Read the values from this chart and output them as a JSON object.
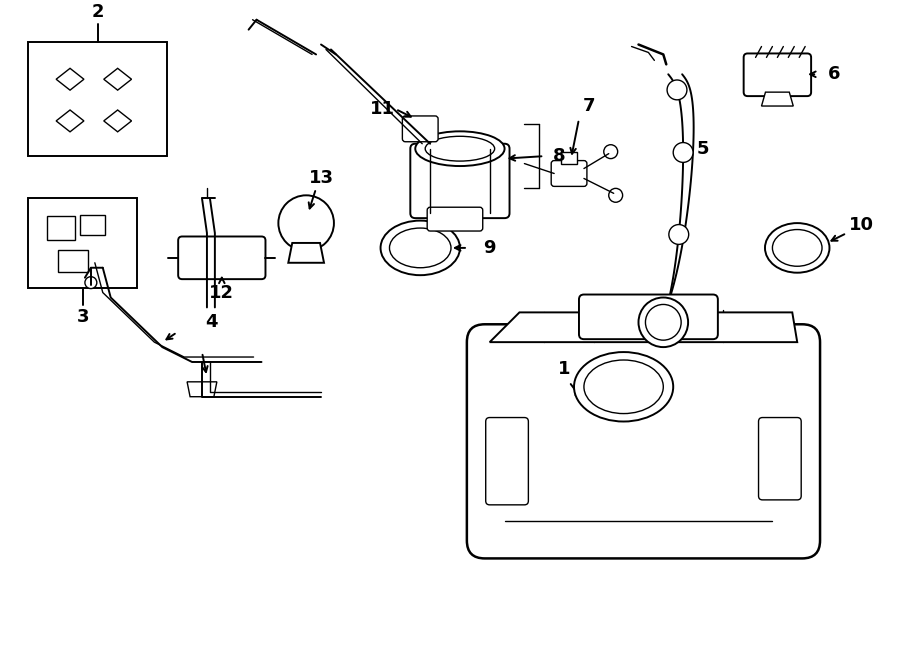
{
  "bg_color": "#ffffff",
  "line_color": "#000000",
  "text_color": "#000000",
  "label_fontsize": 13,
  "fig_width": 9.0,
  "fig_height": 6.61,
  "dpi": 100
}
